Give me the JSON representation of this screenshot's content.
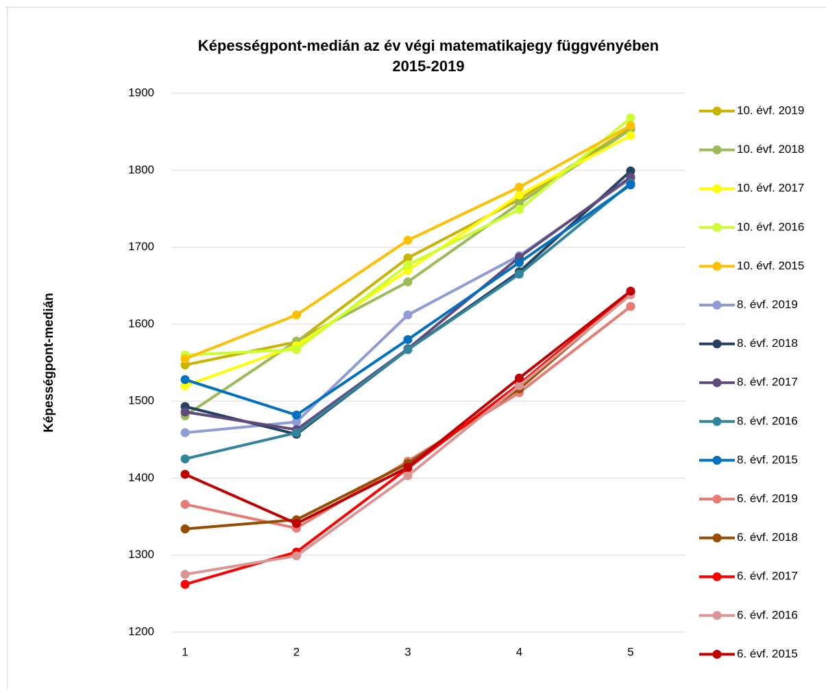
{
  "chart_data": {
    "type": "line",
    "title": "Képességpont-medián az év végi matematikajegy függvényében",
    "subtitle": "2015-2019",
    "y_label": "Képességpont-medián",
    "categories": [
      "1",
      "2",
      "3",
      "4",
      "5"
    ],
    "ylim": [
      1200,
      1900
    ],
    "yticks": [
      1200,
      1300,
      1400,
      1500,
      1600,
      1700,
      1800,
      1900
    ],
    "grid": true,
    "legend_position": "right",
    "series": [
      {
        "name": "10. évf. 2019",
        "color": "#c9b400",
        "values": [
          1547,
          1577,
          1686,
          1762,
          1855
        ]
      },
      {
        "name": "10. évf. 2018",
        "color": "#9bbb59",
        "values": [
          1481,
          1578,
          1655,
          1757,
          1853
        ]
      },
      {
        "name": "10. évf. 2017",
        "color": "#ffff00",
        "values": [
          1520,
          1572,
          1670,
          1768,
          1845
        ]
      },
      {
        "name": "10. évf. 2016",
        "color": "#ccff33",
        "values": [
          1560,
          1567,
          1677,
          1749,
          1868
        ]
      },
      {
        "name": "10. évf. 2015",
        "color": "#ffc000",
        "values": [
          1555,
          1612,
          1709,
          1778,
          1858
        ]
      },
      {
        "name": "8. évf. 2019",
        "color": "#8e9bd6",
        "values": [
          1459,
          1473,
          1612,
          1689,
          1789
        ]
      },
      {
        "name": "8. évf. 2018",
        "color": "#254061",
        "values": [
          1493,
          1457,
          1567,
          1668,
          1799
        ]
      },
      {
        "name": "8. évf. 2017",
        "color": "#604a7b",
        "values": [
          1486,
          1463,
          1568,
          1687,
          1791
        ]
      },
      {
        "name": "8. évf. 2016",
        "color": "#31849b",
        "values": [
          1425,
          1459,
          1567,
          1665,
          1783
        ]
      },
      {
        "name": "8. évf. 2015",
        "color": "#0070c0",
        "values": [
          1528,
          1482,
          1580,
          1680,
          1781
        ]
      },
      {
        "name": "6. évf. 2019",
        "color": "#e67c73",
        "values": [
          1366,
          1335,
          1422,
          1511,
          1623
        ]
      },
      {
        "name": "6. évf. 2018",
        "color": "#994c00",
        "values": [
          1334,
          1346,
          1419,
          1516,
          1640
        ]
      },
      {
        "name": "6. évf. 2017",
        "color": "#ff0000",
        "values": [
          1262,
          1304,
          1413,
          1522,
          1642
        ]
      },
      {
        "name": "6. évf. 2016",
        "color": "#d99694",
        "values": [
          1275,
          1299,
          1403,
          1520,
          1638
        ]
      },
      {
        "name": "6. évf. 2015",
        "color": "#c00000",
        "values": [
          1405,
          1341,
          1414,
          1530,
          1643
        ]
      }
    ]
  }
}
